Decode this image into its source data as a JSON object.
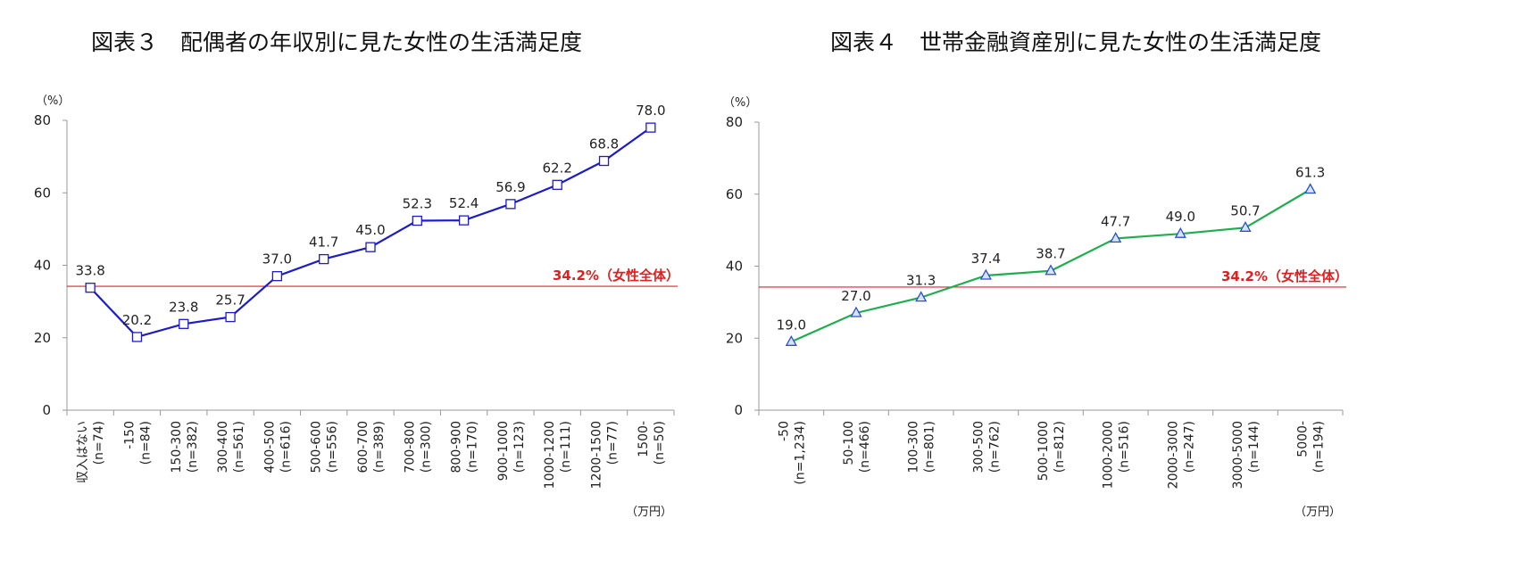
{
  "charts": [
    {
      "title": "図表３　配偶者の年収別に見た女性の生活満足度",
      "chart_data": {
        "type": "line",
        "title": "図表３　配偶者の年収別に見た女性の生活満足度",
        "ylabel": "（%）",
        "xunit": "（万円）",
        "ylim": [
          0,
          80
        ],
        "yticks": [
          0,
          20,
          40,
          60,
          80
        ],
        "categories": [
          "収入はない",
          "-150",
          "150-300",
          "300-400",
          "400-500",
          "500-600",
          "600-700",
          "700-800",
          "800-900",
          "900-1000",
          "1000-1200",
          "1200-1500",
          "1500-"
        ],
        "sample_sizes": [
          "(n=74)",
          "(n=84)",
          "(n=382)",
          "(n=561)",
          "(n=616)",
          "(n=556)",
          "(n=389)",
          "(n=300)",
          "(n=170)",
          "(n=123)",
          "(n=111)",
          "(n=77)",
          "(n=50)"
        ],
        "series": [
          {
            "values": [
              33.8,
              20.2,
              23.8,
              25.7,
              37.0,
              41.7,
              45.0,
              52.3,
              52.4,
              56.9,
              62.2,
              68.8,
              78.0
            ],
            "labels": [
              "33.8",
              "20.2",
              "23.8",
              "25.7",
              "37.0",
              "41.7",
              "45.0",
              "52.3",
              "52.4",
              "56.9",
              "62.2",
              "68.8",
              "78.0"
            ],
            "color": "#1c1ccc",
            "marker": "square"
          }
        ],
        "reference_line": {
          "value": 34.2,
          "label": "34.2%（女性全体）",
          "color": "#e02020"
        },
        "grid": false
      }
    },
    {
      "title": "図表４　世帯金融資産別に見た女性の生活満足度",
      "chart_data": {
        "type": "line",
        "title": "図表４　世帯金融資産別に見た女性の生活満足度",
        "ylabel": "（%）",
        "xunit": "（万円）",
        "ylim": [
          0,
          80
        ],
        "yticks": [
          0,
          20,
          40,
          60,
          80
        ],
        "categories": [
          "-50",
          "50-100",
          "100-300",
          "300-500",
          "500-1000",
          "1000-2000",
          "2000-3000",
          "3000-5000",
          "5000-"
        ],
        "sample_sizes": [
          "(n=1,234)",
          "(n=466)",
          "(n=801)",
          "(n=762)",
          "(n=812)",
          "(n=516)",
          "(n=247)",
          "(n=144)",
          "(n=194)"
        ],
        "series": [
          {
            "values": [
              19.0,
              27.0,
              31.3,
              37.4,
              38.7,
              47.7,
              49.0,
              50.7,
              61.3
            ],
            "labels": [
              "19.0",
              "27.0",
              "31.3",
              "37.4",
              "38.7",
              "47.7",
              "49.0",
              "50.7",
              "61.3"
            ],
            "color": "#1fae4e",
            "marker": "triangle",
            "marker_color": "#2a4fd0"
          }
        ],
        "reference_line": {
          "value": 34.2,
          "label": "34.2%（女性全体）",
          "color": "#e02020"
        },
        "grid": false
      }
    }
  ]
}
